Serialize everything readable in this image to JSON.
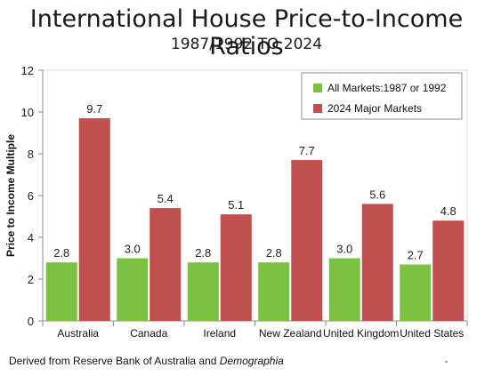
{
  "title": "International House Price-to-Income Ratios",
  "subtitle": "1987/1992 TO 2024",
  "source_prefix": "Derived from Reserve Bank of Australia and ",
  "source_italic": "Demographia",
  "colors": {
    "series1": "#7cc242",
    "series2": "#c0504d"
  },
  "chart_data": {
    "type": "bar",
    "categories": [
      "Australia",
      "Canada",
      "Ireland",
      "New Zealand",
      "United Kingdom",
      "United States"
    ],
    "series": [
      {
        "name": "All Markets:1987 or 1992",
        "values": [
          2.8,
          3.0,
          2.8,
          2.8,
          3.0,
          2.7
        ],
        "labels": [
          "2.8",
          "3.0",
          "2.8",
          "2.8",
          "3.0",
          "2.7"
        ]
      },
      {
        "name": "2024 Major Markets",
        "values": [
          9.7,
          5.4,
          5.1,
          7.7,
          5.6,
          4.8
        ],
        "labels": [
          "9.7",
          "5.4",
          "5.1",
          "7.7",
          "5.6",
          "4.8"
        ]
      }
    ],
    "ylabel": "Price to Income Multiple",
    "xlabel": "",
    "ylim": [
      0,
      12
    ],
    "yticks": [
      0,
      2,
      4,
      6,
      8,
      10,
      12
    ],
    "grid": false,
    "legend": "top-right"
  }
}
